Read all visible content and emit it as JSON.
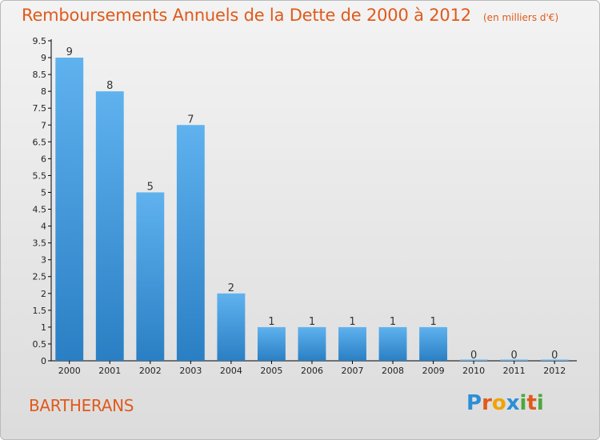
{
  "header": {
    "title": "Remboursements Annuels de la Dette de 2000 à 2012",
    "unit": "(en milliers d'€)"
  },
  "footer": {
    "commune": "BARTHERANS",
    "logo": [
      "P",
      "r",
      "o",
      "x",
      "i",
      "t",
      "i"
    ]
  },
  "colors": {
    "title": "#e05a1a",
    "bar_top": "#5fb2ee",
    "bar_bottom": "#2a7fc4",
    "axis": "#000000",
    "logo_colors": [
      "#2b8fd6",
      "#e05a1a",
      "#f0a300",
      "#2b8fd6",
      "#4aa83a",
      "#e05a1a",
      "#4aa83a"
    ]
  },
  "chart_data": {
    "type": "bar",
    "title": "Remboursements Annuels de la Dette de 2000 à 2012",
    "xlabel": "",
    "ylabel": "",
    "categories": [
      "2000",
      "2001",
      "2002",
      "2003",
      "2004",
      "2005",
      "2006",
      "2007",
      "2008",
      "2009",
      "2010",
      "2011",
      "2012"
    ],
    "values": [
      9,
      8,
      5,
      7,
      2,
      1,
      1,
      1,
      1,
      1,
      0,
      0,
      0
    ],
    "data_labels": [
      "9",
      "8",
      "5",
      "7",
      "2",
      "1",
      "1",
      "1",
      "1",
      "1",
      "0",
      "0",
      "0"
    ],
    "ylim": [
      0,
      9.5
    ],
    "yticks": [
      0,
      0.5,
      1,
      1.5,
      2,
      2.5,
      3,
      3.5,
      4,
      4.5,
      5,
      5.5,
      6,
      6.5,
      7,
      7.5,
      8,
      8.5,
      9,
      9.5
    ],
    "ytick_labels": [
      "0",
      "0.5",
      "1",
      "1.5",
      "2",
      "2.5",
      "3",
      "3.5",
      "4",
      "4.5",
      "5",
      "5.5",
      "6",
      "6.5",
      "7",
      "7.5",
      "8",
      "8.5",
      "9",
      "9.5"
    ],
    "grid": false,
    "legend": "none"
  }
}
